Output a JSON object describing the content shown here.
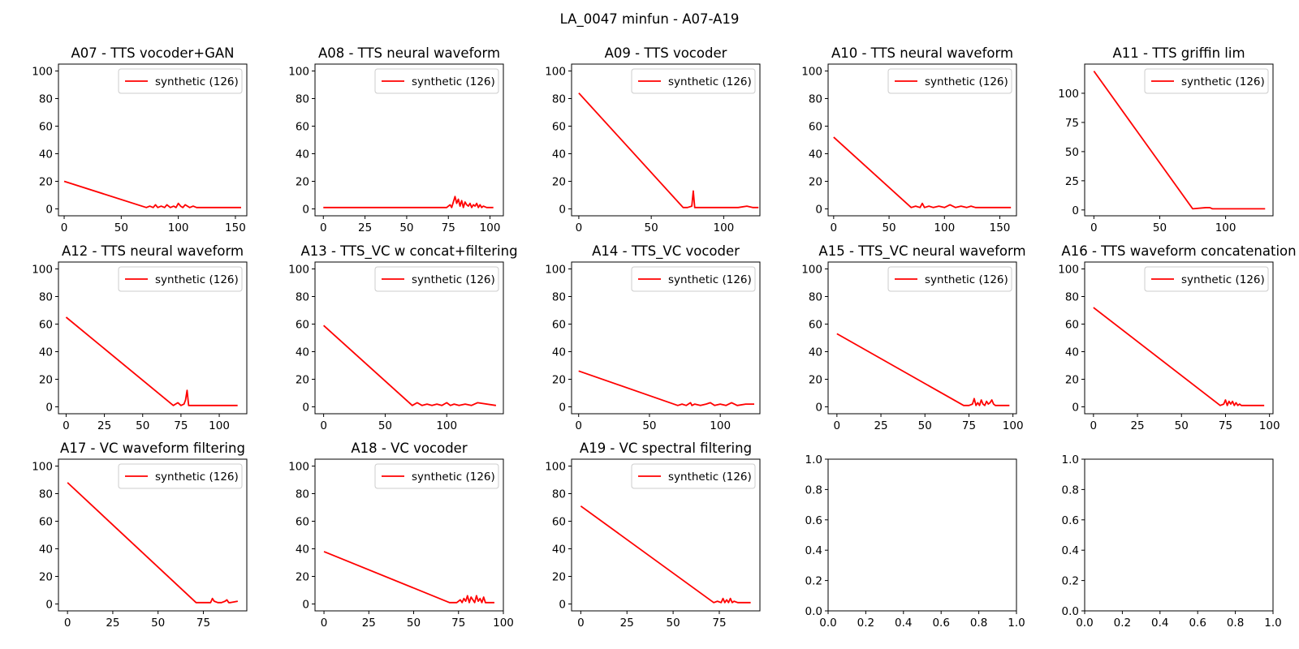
{
  "figure_title": "LA_0047 minfun - A07-A19",
  "colors": {
    "series": "#ff0000",
    "axes": "#000000",
    "legend_border": "#cccccc"
  },
  "chart_data": [
    {
      "type": "line",
      "title": "A07 - TTS vocoder+GAN",
      "xlim": [
        -5,
        160
      ],
      "ylim": [
        -5,
        105
      ],
      "xticks": [
        0,
        50,
        100,
        150
      ],
      "yticks": [
        0,
        20,
        40,
        60,
        80,
        100
      ],
      "legend": "top-right",
      "series": [
        {
          "name": "synthetic (126)",
          "x": [
            0,
            72,
            75,
            78,
            80,
            82,
            85,
            88,
            90,
            93,
            96,
            98,
            100,
            102,
            104,
            106,
            110,
            113,
            116,
            120,
            155
          ],
          "y": [
            20,
            1,
            2,
            1,
            3,
            1,
            2,
            1,
            3,
            1,
            2,
            1,
            4,
            2,
            1,
            3,
            1,
            2,
            1,
            1,
            1
          ]
        }
      ]
    },
    {
      "type": "line",
      "title": "A08 - TTS neural waveform",
      "xlim": [
        -5,
        108
      ],
      "ylim": [
        -5,
        105
      ],
      "xticks": [
        0,
        25,
        50,
        75,
        100
      ],
      "yticks": [
        0,
        20,
        40,
        60,
        80,
        100
      ],
      "legend": "top-right",
      "series": [
        {
          "name": "synthetic (126)",
          "x": [
            0,
            74,
            76,
            77,
            78,
            79,
            80,
            81,
            82,
            83,
            84,
            85,
            86,
            87,
            88,
            89,
            90,
            91,
            92,
            93,
            94,
            95,
            96,
            98,
            100,
            102
          ],
          "y": [
            1,
            1,
            3,
            1,
            5,
            9,
            4,
            7,
            2,
            6,
            1,
            5,
            3,
            2,
            4,
            1,
            3,
            2,
            4,
            1,
            3,
            1,
            2,
            1,
            1,
            1
          ]
        }
      ]
    },
    {
      "type": "line",
      "title": "A09 - TTS vocoder",
      "xlim": [
        -5,
        125
      ],
      "ylim": [
        -5,
        105
      ],
      "xticks": [
        0,
        50,
        100
      ],
      "yticks": [
        0,
        20,
        40,
        60,
        80,
        100
      ],
      "legend": "top-right",
      "series": [
        {
          "name": "synthetic (126)",
          "x": [
            0,
            72,
            75,
            78,
            79,
            80,
            85,
            100,
            110,
            116,
            120,
            124
          ],
          "y": [
            84,
            1,
            1,
            2,
            13,
            1,
            1,
            1,
            1,
            2,
            1,
            1
          ]
        }
      ]
    },
    {
      "type": "line",
      "title": "A10 - TTS neural waveform",
      "xlim": [
        -5,
        165
      ],
      "ylim": [
        -5,
        105
      ],
      "xticks": [
        0,
        50,
        100,
        150
      ],
      "yticks": [
        0,
        20,
        40,
        60,
        80,
        100
      ],
      "legend": "top-right",
      "series": [
        {
          "name": "synthetic (126)",
          "x": [
            0,
            70,
            74,
            78,
            80,
            82,
            86,
            90,
            95,
            100,
            105,
            110,
            115,
            120,
            124,
            128,
            160
          ],
          "y": [
            52,
            1,
            2,
            1,
            4,
            1,
            2,
            1,
            2,
            1,
            3,
            1,
            2,
            1,
            2,
            1,
            1
          ]
        }
      ]
    },
    {
      "type": "line",
      "title": "A11 - TTS griffin lim",
      "xlim": [
        -7,
        136
      ],
      "ylim": [
        -5,
        125
      ],
      "xticks": [
        0,
        50,
        100
      ],
      "yticks": [
        0,
        25,
        50,
        75,
        100
      ],
      "legend": "top-right",
      "series": [
        {
          "name": "synthetic (126)",
          "x": [
            0,
            75,
            85,
            88,
            90,
            130
          ],
          "y": [
            119,
            1,
            2,
            2,
            1,
            1
          ]
        }
      ]
    },
    {
      "type": "line",
      "title": "A12 - TTS neural waveform",
      "xlim": [
        -5,
        118
      ],
      "ylim": [
        -5,
        105
      ],
      "xticks": [
        0,
        25,
        50,
        75,
        100
      ],
      "yticks": [
        0,
        20,
        40,
        60,
        80,
        100
      ],
      "legend": "top-right",
      "series": [
        {
          "name": "synthetic (126)",
          "x": [
            0,
            70,
            73,
            75,
            77,
            78,
            79,
            80,
            82,
            90,
            112
          ],
          "y": [
            65,
            1,
            3,
            1,
            2,
            5,
            12,
            1,
            1,
            1,
            1
          ]
        }
      ]
    },
    {
      "type": "line",
      "title": "A13 - TTS_VC w concat+filtering",
      "xlim": [
        -7,
        146
      ],
      "ylim": [
        -5,
        105
      ],
      "xticks": [
        0,
        50,
        100
      ],
      "yticks": [
        0,
        20,
        40,
        60,
        80,
        100
      ],
      "legend": "top-right",
      "series": [
        {
          "name": "synthetic (126)",
          "x": [
            0,
            72,
            76,
            80,
            84,
            88,
            92,
            96,
            100,
            103,
            106,
            110,
            115,
            120,
            125,
            140
          ],
          "y": [
            59,
            1,
            3,
            1,
            2,
            1,
            2,
            1,
            3,
            1,
            2,
            1,
            2,
            1,
            3,
            1
          ]
        }
      ]
    },
    {
      "type": "line",
      "title": "A14 - TTS_VC vocoder",
      "xlim": [
        -5,
        128
      ],
      "ylim": [
        -5,
        105
      ],
      "xticks": [
        0,
        50,
        100
      ],
      "yticks": [
        0,
        20,
        40,
        60,
        80,
        100
      ],
      "legend": "top-right",
      "series": [
        {
          "name": "synthetic (126)",
          "x": [
            0,
            70,
            73,
            76,
            79,
            80,
            82,
            86,
            90,
            93,
            96,
            100,
            104,
            108,
            112,
            118,
            124
          ],
          "y": [
            26,
            1,
            2,
            1,
            3,
            1,
            2,
            1,
            2,
            3,
            1,
            2,
            1,
            3,
            1,
            2,
            2
          ]
        }
      ]
    },
    {
      "type": "line",
      "title": "A15 - TTS_VC neural waveform",
      "xlim": [
        -5,
        102
      ],
      "ylim": [
        -5,
        105
      ],
      "xticks": [
        0,
        25,
        50,
        75,
        100
      ],
      "yticks": [
        0,
        20,
        40,
        60,
        80,
        100
      ],
      "legend": "top-right",
      "series": [
        {
          "name": "synthetic (126)",
          "x": [
            0,
            72,
            75,
            77,
            78,
            79,
            80,
            81,
            82,
            83,
            84,
            85,
            86,
            87,
            88,
            89,
            90,
            92,
            95,
            98
          ],
          "y": [
            53,
            1,
            1,
            2,
            6,
            1,
            3,
            1,
            5,
            2,
            1,
            4,
            2,
            3,
            5,
            2,
            1,
            1,
            1,
            1
          ]
        }
      ]
    },
    {
      "type": "line",
      "title": "A16 - TTS waveform concatenation",
      "xlim": [
        -5,
        102
      ],
      "ylim": [
        -5,
        105
      ],
      "xticks": [
        0,
        25,
        50,
        75,
        100
      ],
      "yticks": [
        0,
        20,
        40,
        60,
        80,
        100
      ],
      "legend": "top-right",
      "series": [
        {
          "name": "synthetic (126)",
          "x": [
            0,
            72,
            74,
            75,
            76,
            77,
            78,
            79,
            80,
            81,
            82,
            83,
            84,
            86,
            90,
            97
          ],
          "y": [
            72,
            1,
            2,
            5,
            1,
            4,
            2,
            4,
            1,
            3,
            1,
            2,
            1,
            1,
            1,
            1
          ]
        }
      ]
    },
    {
      "type": "line",
      "title": "A17 - VC waveform filtering",
      "xlim": [
        -5,
        99
      ],
      "ylim": [
        -5,
        105
      ],
      "xticks": [
        0,
        25,
        50,
        75
      ],
      "yticks": [
        0,
        20,
        40,
        60,
        80,
        100
      ],
      "legend": "top-right",
      "series": [
        {
          "name": "synthetic (126)",
          "x": [
            0,
            71,
            75,
            79,
            80,
            81,
            83,
            85,
            87,
            88,
            89,
            90,
            94
          ],
          "y": [
            88,
            1,
            1,
            1,
            4,
            2,
            1,
            1,
            2,
            3,
            1,
            1,
            2
          ]
        }
      ]
    },
    {
      "type": "line",
      "title": "A18 - VC vocoder",
      "xlim": [
        -5,
        100
      ],
      "ylim": [
        -5,
        105
      ],
      "xticks": [
        0,
        25,
        50,
        75,
        100
      ],
      "yticks": [
        0,
        20,
        40,
        60,
        80,
        100
      ],
      "legend": "top-right",
      "series": [
        {
          "name": "synthetic (126)",
          "x": [
            0,
            70,
            74,
            76,
            77,
            78,
            79,
            80,
            81,
            82,
            83,
            84,
            85,
            86,
            87,
            88,
            89,
            90,
            92,
            95
          ],
          "y": [
            38,
            1,
            1,
            3,
            1,
            4,
            2,
            6,
            1,
            5,
            3,
            1,
            6,
            2,
            4,
            1,
            5,
            1,
            1,
            1
          ]
        }
      ]
    },
    {
      "type": "line",
      "title": "A19 - VC spectral filtering",
      "xlim": [
        -5,
        97
      ],
      "ylim": [
        -5,
        105
      ],
      "xticks": [
        0,
        25,
        50,
        75
      ],
      "yticks": [
        0,
        20,
        40,
        60,
        80,
        100
      ],
      "legend": "top-right",
      "series": [
        {
          "name": "synthetic (126)",
          "x": [
            0,
            72,
            74,
            76,
            77,
            78,
            79,
            80,
            81,
            82,
            83,
            85,
            88,
            92
          ],
          "y": [
            71,
            1,
            2,
            1,
            4,
            1,
            3,
            1,
            4,
            1,
            2,
            1,
            1,
            1
          ]
        }
      ]
    },
    {
      "type": "line",
      "title": "",
      "xlim": [
        0,
        1
      ],
      "ylim": [
        0,
        1
      ],
      "xticks": [
        0.0,
        0.2,
        0.4,
        0.6,
        0.8,
        1.0
      ],
      "yticks": [
        0.0,
        0.2,
        0.4,
        0.6,
        0.8,
        1.0
      ],
      "series": []
    },
    {
      "type": "line",
      "title": "",
      "xlim": [
        0,
        1
      ],
      "ylim": [
        0,
        1
      ],
      "xticks": [
        0.0,
        0.2,
        0.4,
        0.6,
        0.8,
        1.0
      ],
      "yticks": [
        0.0,
        0.2,
        0.4,
        0.6,
        0.8,
        1.0
      ],
      "series": []
    }
  ]
}
